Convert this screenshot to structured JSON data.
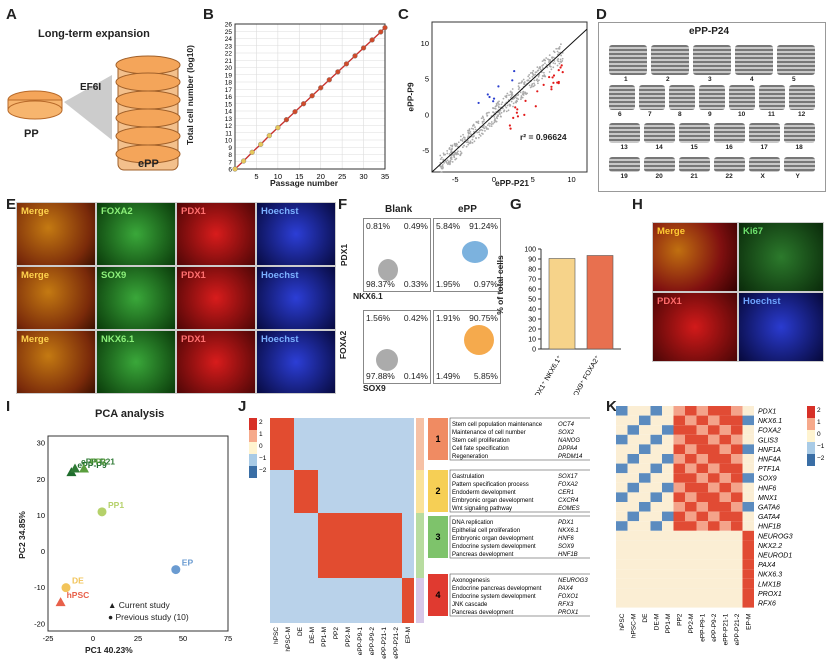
{
  "panels": {
    "A": "A",
    "B": "B",
    "C": "C",
    "D": "D",
    "E": "E",
    "F": "F",
    "G": "G",
    "H": "H",
    "I": "I",
    "J": "J",
    "K": "K"
  },
  "panelA": {
    "title": "Long-term expansion",
    "arrow_label": "EF6I",
    "left_label": "PP",
    "right_label": "ePP"
  },
  "panelB": {
    "ylabel": "Total cell number (log10)",
    "xlabel": "Passage number",
    "chart_data": {
      "type": "line",
      "x": [
        0,
        2,
        4,
        6,
        8,
        10,
        12,
        14,
        16,
        18,
        20,
        22,
        24,
        26,
        28,
        30,
        32,
        34,
        35
      ],
      "y": [
        6,
        7.1,
        8.3,
        9.4,
        10.6,
        11.7,
        12.8,
        13.9,
        15,
        16.1,
        17.2,
        18.3,
        19.4,
        20.5,
        21.6,
        22.7,
        23.8,
        24.9,
        25.5
      ],
      "xticks": [
        5,
        10,
        15,
        20,
        25,
        30,
        35
      ],
      "yticks": [
        6,
        7,
        8,
        9,
        10,
        11,
        12,
        13,
        14,
        15,
        16,
        17,
        18,
        19,
        20,
        21,
        22,
        23,
        24,
        25,
        26
      ],
      "xlim": [
        0,
        35
      ],
      "ylim": [
        6,
        26
      ]
    }
  },
  "panelC": {
    "ylabel": "ePP-P9",
    "xlabel": "ePP-P21",
    "r2": "r² = 0.96624",
    "chart_data": {
      "type": "scatter",
      "xticks": [
        "-5",
        "0",
        "5",
        "10"
      ],
      "yticks": [
        "-5",
        "0",
        "5",
        "10"
      ],
      "xlim": [
        -8,
        12
      ],
      "ylim": [
        -8,
        13
      ]
    }
  },
  "panelD": {
    "title": "ePP-P24",
    "chromosomes": [
      "1",
      "2",
      "3",
      "4",
      "5",
      "6",
      "7",
      "8",
      "9",
      "10",
      "11",
      "12",
      "13",
      "14",
      "15",
      "16",
      "17",
      "18",
      "19",
      "20",
      "21",
      "22",
      "X",
      "Y"
    ]
  },
  "panelE": {
    "rows": [
      {
        "merge": "Merge",
        "marker": "FOXA2",
        "pdx": "PDX1",
        "dna": "Hoechst"
      },
      {
        "merge": "Merge",
        "marker": "SOX9",
        "pdx": "PDX1",
        "dna": "Hoechst"
      },
      {
        "merge": "Merge",
        "marker": "NKX6.1",
        "pdx": "PDX1",
        "dna": "Hoechst"
      }
    ]
  },
  "panelF": {
    "col1": "Blank",
    "col2": "ePP",
    "top": {
      "ylabel": "PDX1",
      "xlabel": "NKX6.1",
      "blank": [
        "0.81%",
        "0.49%",
        "98.37%",
        "0.33%"
      ],
      "epp": [
        "5.84%",
        "91.24%",
        "1.95%",
        "0.97%"
      ]
    },
    "bottom": {
      "ylabel": "FOXA2",
      "xlabel": "SOX9",
      "blank": [
        "1.56%",
        "0.42%",
        "97.88%",
        "0.14%"
      ],
      "epp": [
        "1.91%",
        "90.75%",
        "1.49%",
        "5.85%"
      ]
    }
  },
  "panelG": {
    "ylabel": "% of total cells",
    "chart_data": {
      "type": "bar",
      "categories": [
        "PDX1⁺ NKX6.1⁺",
        "SOX9⁺ FOXA2⁺"
      ],
      "values": [
        90.5,
        93.5
      ],
      "yticks": [
        "0",
        "10",
        "20",
        "30",
        "40",
        "50",
        "60",
        "70",
        "80",
        "90",
        "100"
      ],
      "ylim": [
        0,
        100
      ]
    }
  },
  "panelH": {
    "merge": "Merge",
    "ki67": "Ki67",
    "pdx": "PDX1",
    "dna": "Hoechst"
  },
  "panelI": {
    "title": "PCA analysis",
    "xlabel": "PC1  40.23%",
    "ylabel": "PC2  34.85%",
    "legend": [
      "Current study",
      "Previous study (10)"
    ],
    "chart_data": {
      "type": "scatter",
      "points": [
        {
          "label": "ePP-P9",
          "x": -12,
          "y": 22
        },
        {
          "label": "ePP-P21",
          "x": -10,
          "y": 23
        },
        {
          "label": "PP2",
          "x": -5,
          "y": 23
        },
        {
          "label": "PP1",
          "x": 5,
          "y": 11
        },
        {
          "label": "EP",
          "x": 46,
          "y": -5
        },
        {
          "label": "DE",
          "x": -15,
          "y": -10
        },
        {
          "label": "hPSC",
          "x": -18,
          "y": -14
        }
      ],
      "xticks": [
        "-25",
        "0",
        "25",
        "50",
        "75"
      ],
      "yticks": [
        "30",
        "20",
        "10",
        "0",
        "-10",
        "-20"
      ],
      "xlim": [
        -25,
        75
      ],
      "ylim": [
        -22,
        32
      ]
    },
    "point_labels": {
      "epp9": "ePP-P9",
      "epp21": "ePP-P21",
      "pp2": "PP2",
      "pp1": "PP1",
      "ep": "EP",
      "de": "DE",
      "hpsc": "hPSC"
    }
  },
  "panelJ": {
    "scale": [
      "2",
      "1",
      "0",
      "−1",
      "−2"
    ],
    "columns": [
      "hPSC",
      "hPSC-M",
      "DE",
      "DE-M",
      "PP1-M",
      "PP2",
      "PP2-M",
      "ePP-P9-1",
      "ePP-P9-2",
      "ePP-P21-1",
      "ePP-P21-2",
      "EP-M"
    ],
    "clusters": [
      {
        "id": "1",
        "terms": [
          "Stem cell population maintenance",
          "Maintenance of cell number",
          "Stem cell proliferation",
          "Cell fate specification",
          "Regeneration"
        ],
        "genes": [
          "OCT4",
          "SOX2",
          "NANOG",
          "DPPA4",
          "PRDM14"
        ]
      },
      {
        "id": "2",
        "terms": [
          "Gastrulation",
          "Pattern specification process",
          "Endoderm development",
          "Embryonic organ development",
          "Wnt signaling pathway"
        ],
        "genes": [
          "SOX17",
          "FOXA2",
          "CER1",
          "CXCR4",
          "EOMES"
        ]
      },
      {
        "id": "3",
        "terms": [
          "DNA replication",
          "Epithelial cell proliferation",
          "Embryonic organ development",
          "Endocrine system development",
          "Pancreas development"
        ],
        "genes": [
          "PDX1",
          "NKX6.1",
          "HNF6",
          "SOX9",
          "HNF1B"
        ]
      },
      {
        "id": "4",
        "terms": [
          "Axonogenesis",
          "Endocrine pancreas development",
          "Endocrine system development",
          "JNK cascade",
          "Pancreas development"
        ],
        "genes": [
          "NEUROG3",
          "PAX4",
          "FOXO1",
          "RFX3",
          "PROX1"
        ]
      }
    ]
  },
  "panelK": {
    "scale": [
      "2",
      "1",
      "0",
      "−1",
      "−2"
    ],
    "columns": [
      "hPSC",
      "hPSC-M",
      "DE",
      "DE-M",
      "PP1-M",
      "PP2",
      "PP2-M",
      "ePP-P9-1",
      "ePP-P9-2",
      "ePP-P21-1",
      "ePP-P21-2",
      "EP-M"
    ],
    "genes": [
      "PDX1",
      "NKX6.1",
      "FOXA2",
      "GLIS3",
      "HNF1A",
      "HNF4A",
      "PTF1A",
      "SOX9",
      "HNF6",
      "MNX1",
      "GATA6",
      "GATA4",
      "HNF1B",
      "NEUROG3",
      "NKX2.2",
      "NEUROD1",
      "PAX4",
      "NKX6.3",
      "LMX1B",
      "PROX1",
      "RFX6"
    ]
  }
}
